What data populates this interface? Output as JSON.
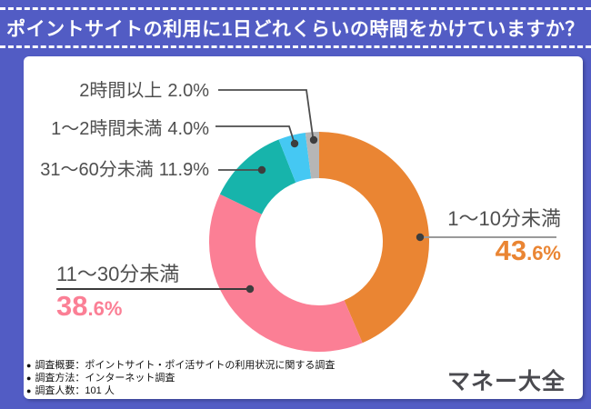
{
  "chart_data": {
    "type": "pie",
    "variant": "donut",
    "title": "ポイントサイトの利用に1日どれくらいの時間をかけていますか？",
    "unit": "%",
    "start_angle": "top",
    "direction": "clockwise",
    "legend_position": "callout-labels",
    "segments": [
      {
        "label": "1〜10分未満",
        "value": 43.6,
        "display": "43.6%",
        "color": "#ea8533"
      },
      {
        "label": "11〜30分未満",
        "value": 38.6,
        "display": "38.6%",
        "color": "#fb7f95"
      },
      {
        "label": "31〜60分未満",
        "value": 11.9,
        "display": "11.9%",
        "color": "#17b4ab"
      },
      {
        "label": "1〜2時間未満",
        "value": 4.0,
        "display": "4.0%",
        "color": "#45c8f3"
      },
      {
        "label": "2時間以上",
        "value": 2.0,
        "display": "2.0%",
        "color": "#b6b6b6"
      }
    ]
  },
  "footer": {
    "bullet": "●",
    "notes": [
      {
        "text": "調査概要：ポイントサイト・ポイ活サイトの利用状況に関する調査"
      },
      {
        "text": "調査方法：インターネット調査"
      },
      {
        "text": "調査人数：101 人"
      }
    ],
    "logo": "マネー大全"
  },
  "colors": {
    "background": "#525cc4",
    "card": "#ffffff",
    "title_text": "#ffffff",
    "label_text": "#4f4f4f",
    "leader_line": "#4d4d4d",
    "leader_line_right": "#9a9a9a",
    "leader_line_left": "#3a3a3a",
    "dot": "#3d3d3d",
    "note_text": "#111111",
    "logo_text": "#4a4a4f"
  }
}
